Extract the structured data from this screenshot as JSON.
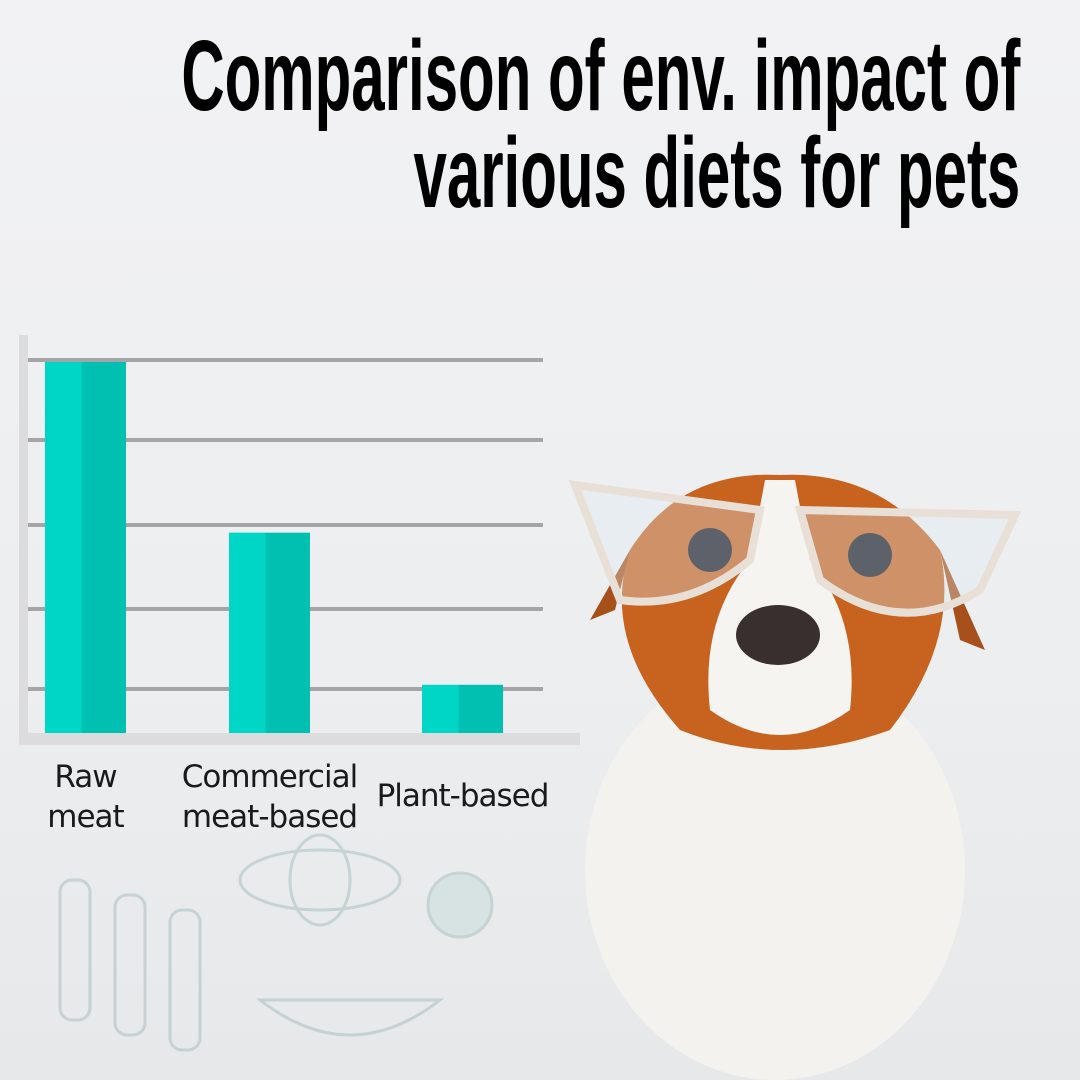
{
  "title_lines": [
    "Comparison of env. impact of",
    "various diets for pets"
  ],
  "chart_data": {
    "type": "bar",
    "title": "Comparison of env. impact of various diets for pets",
    "categories": [
      "Raw meat",
      "Commercial meat-based",
      "Plant-based"
    ],
    "category_label_lines": [
      [
        "Raw",
        "meat"
      ],
      [
        "Commercial",
        "meat-based"
      ],
      [
        "Plant-based"
      ]
    ],
    "values": [
      100,
      54,
      13
    ],
    "value_note_units": "relative",
    "ylim": [
      0,
      100
    ],
    "xlabel": "",
    "ylabel": "",
    "grid": true,
    "y_tick_labels": false,
    "colors": {
      "bar_light": "#00d6c6",
      "bar_dark": "#00c0b1",
      "grid": "#a5a5a8",
      "axis": "#dcdcde"
    }
  },
  "image": {
    "subject": "dog-with-glasses-photo"
  }
}
